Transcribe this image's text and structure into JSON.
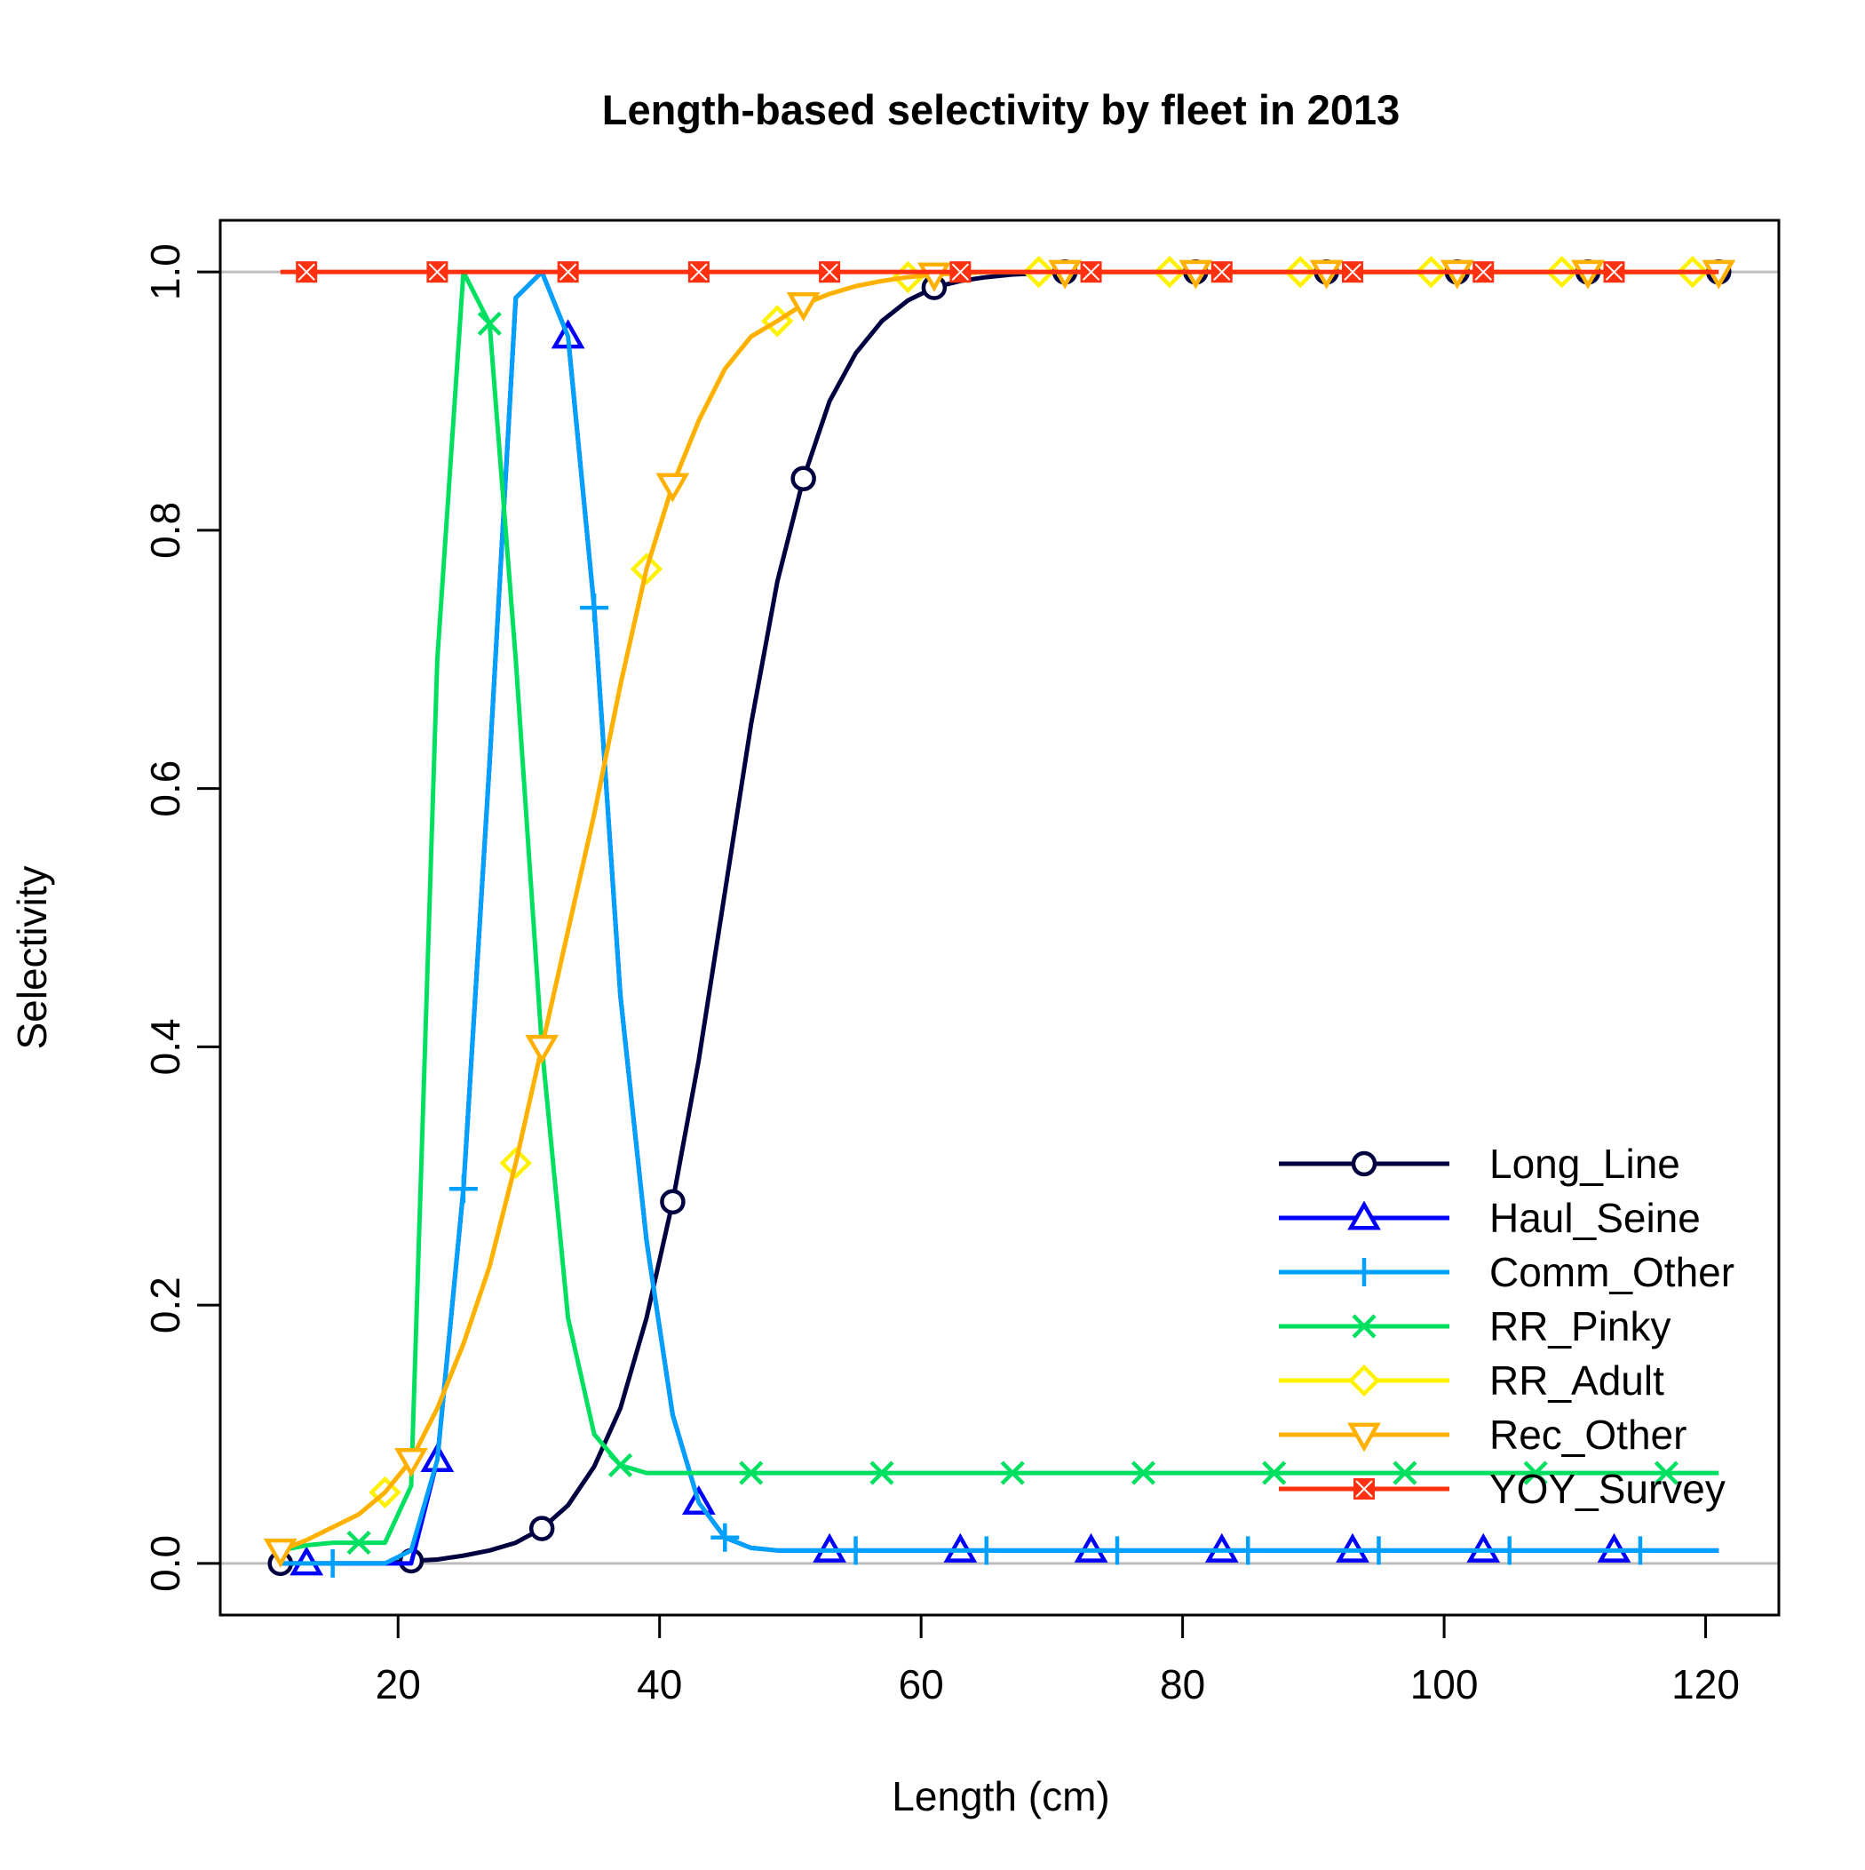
{
  "chart_data": {
    "type": "line",
    "title": "Length-based selectivity by fleet in 2013",
    "xlabel": "Length (cm)",
    "ylabel": "Selectivity",
    "xlim": [
      6.4,
      125.6
    ],
    "ylim": [
      -0.04,
      1.04
    ],
    "xticks": [
      20,
      40,
      60,
      80,
      100,
      120
    ],
    "yticks": [
      0.0,
      0.2,
      0.4,
      0.6,
      0.8,
      1.0
    ],
    "xtick_labels": [
      "20",
      "40",
      "60",
      "80",
      "100",
      "120"
    ],
    "ytick_labels": [
      "0.0",
      "0.2",
      "0.4",
      "0.6",
      "0.8",
      "1.0"
    ],
    "reference_lines": [
      0,
      1
    ],
    "legend_position": "bottom-right",
    "x": [
      11,
      13,
      15,
      17,
      19,
      21,
      23,
      25,
      27,
      29,
      31,
      33,
      35,
      37,
      39,
      41,
      43,
      45,
      47,
      49,
      51,
      53,
      55,
      57,
      59,
      61,
      63,
      65,
      67,
      69,
      71,
      73,
      75,
      77,
      79,
      81,
      83,
      85,
      87,
      89,
      91,
      93,
      95,
      97,
      99,
      101,
      103,
      105,
      107,
      109,
      111,
      113,
      115,
      117,
      119,
      121
    ],
    "series": [
      {
        "name": "Long_Line",
        "color": "#000040",
        "marker": "circle",
        "values": [
          0,
          0,
          0,
          0,
          0,
          0.002,
          0.003,
          0.006,
          0.01,
          0.016,
          0.027,
          0.045,
          0.075,
          0.12,
          0.19,
          0.28,
          0.39,
          0.52,
          0.65,
          0.76,
          0.84,
          0.9,
          0.937,
          0.962,
          0.978,
          0.988,
          0.993,
          0.996,
          0.998,
          0.999,
          1,
          1,
          1,
          1,
          1,
          1,
          1,
          1,
          1,
          1,
          1,
          1,
          1,
          1,
          1,
          1,
          1,
          1,
          1,
          1,
          1,
          1,
          1,
          1,
          1,
          1
        ]
      },
      {
        "name": "Haul_Seine",
        "color": "#0000FF",
        "marker": "triangle",
        "values": [
          0,
          0,
          0,
          0,
          0,
          0,
          0.08,
          0.29,
          0.62,
          0.98,
          1.0,
          0.95,
          0.74,
          0.44,
          0.25,
          0.115,
          0.047,
          0.02,
          0.012,
          0.01,
          0.01,
          0.01,
          0.01,
          0.01,
          0.01,
          0.01,
          0.01,
          0.01,
          0.01,
          0.01,
          0.01,
          0.01,
          0.01,
          0.01,
          0.01,
          0.01,
          0.01,
          0.01,
          0.01,
          0.01,
          0.01,
          0.01,
          0.01,
          0.01,
          0.01,
          0.01,
          0.01,
          0.01,
          0.01,
          0.01,
          0.01,
          0.01,
          0.01,
          0.01,
          0.01,
          0.01
        ]
      },
      {
        "name": "Comm_Other",
        "color": "#00A0FF",
        "marker": "plus",
        "values": [
          0,
          0,
          0,
          0,
          0,
          0.01,
          0.08,
          0.29,
          0.62,
          0.98,
          1.0,
          0.95,
          0.74,
          0.44,
          0.25,
          0.115,
          0.047,
          0.02,
          0.012,
          0.01,
          0.01,
          0.01,
          0.01,
          0.01,
          0.01,
          0.01,
          0.01,
          0.01,
          0.01,
          0.01,
          0.01,
          0.01,
          0.01,
          0.01,
          0.01,
          0.01,
          0.01,
          0.01,
          0.01,
          0.01,
          0.01,
          0.01,
          0.01,
          0.01,
          0.01,
          0.01,
          0.01,
          0.01,
          0.01,
          0.01,
          0.01,
          0.01,
          0.01,
          0.01,
          0.01,
          0.01
        ]
      },
      {
        "name": "RR_Pinky",
        "color": "#00E060",
        "marker": "cross",
        "values": [
          0.01,
          0.014,
          0.016,
          0.016,
          0.016,
          0.06,
          0.7,
          1.0,
          0.96,
          0.7,
          0.4,
          0.19,
          0.1,
          0.076,
          0.07,
          0.07,
          0.07,
          0.07,
          0.07,
          0.07,
          0.07,
          0.07,
          0.07,
          0.07,
          0.07,
          0.07,
          0.07,
          0.07,
          0.07,
          0.07,
          0.07,
          0.07,
          0.07,
          0.07,
          0.07,
          0.07,
          0.07,
          0.07,
          0.07,
          0.07,
          0.07,
          0.07,
          0.07,
          0.07,
          0.07,
          0.07,
          0.07,
          0.07,
          0.07,
          0.07,
          0.07,
          0.07,
          0.07,
          0.07,
          0.07,
          0.07
        ]
      },
      {
        "name": "RR_Adult",
        "color": "#FFF200",
        "marker": "diamond",
        "values": [
          0.01,
          0.018,
          0.028,
          0.038,
          0.055,
          0.08,
          0.12,
          0.17,
          0.23,
          0.31,
          0.4,
          0.49,
          0.58,
          0.68,
          0.77,
          0.835,
          0.885,
          0.925,
          0.95,
          0.962,
          0.975,
          0.983,
          0.989,
          0.993,
          0.996,
          0.998,
          0.999,
          1,
          1,
          1,
          1,
          1,
          1,
          1,
          1,
          1,
          1,
          1,
          1,
          1,
          1,
          1,
          1,
          1,
          1,
          1,
          1,
          1,
          1,
          1,
          1,
          1,
          1,
          1,
          1,
          1
        ]
      },
      {
        "name": "Rec_Other",
        "color": "#FFB000",
        "marker": "triangle-down",
        "values": [
          0.01,
          0.018,
          0.028,
          0.038,
          0.055,
          0.08,
          0.12,
          0.17,
          0.23,
          0.31,
          0.4,
          0.49,
          0.58,
          0.68,
          0.77,
          0.835,
          0.885,
          0.925,
          0.95,
          0.962,
          0.975,
          0.983,
          0.989,
          0.993,
          0.996,
          0.998,
          0.999,
          1,
          1,
          1,
          1,
          1,
          1,
          1,
          1,
          1,
          1,
          1,
          1,
          1,
          1,
          1,
          1,
          1,
          1,
          1,
          1,
          1,
          1,
          1,
          1,
          1,
          1,
          1,
          1,
          1
        ]
      },
      {
        "name": "YOY_Survey",
        "color": "#FF3010",
        "marker": "square-cross",
        "values": [
          1,
          1,
          1,
          1,
          1,
          1,
          1,
          1,
          1,
          1,
          1,
          1,
          1,
          1,
          1,
          1,
          1,
          1,
          1,
          1,
          1,
          1,
          1,
          1,
          1,
          1,
          1,
          1,
          1,
          1,
          1,
          1,
          1,
          1,
          1,
          1,
          1,
          1,
          1,
          1,
          1,
          1,
          1,
          1,
          1,
          1,
          1,
          1,
          1,
          1,
          1,
          1,
          1,
          1,
          1,
          1
        ]
      }
    ]
  }
}
